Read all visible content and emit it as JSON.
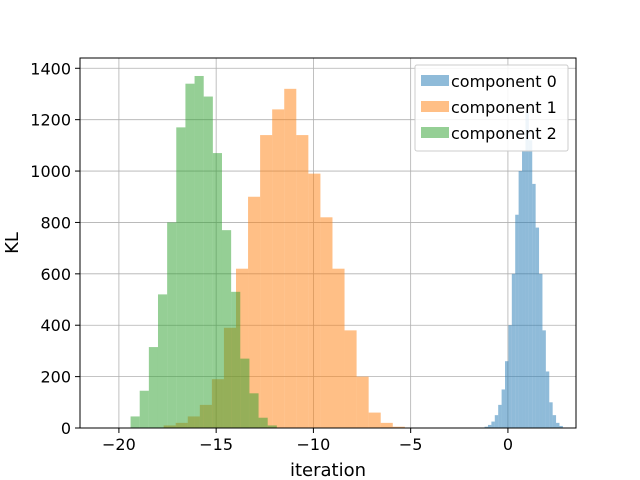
{
  "chart_data": {
    "type": "bar",
    "title": "",
    "xlabel": "iteration",
    "ylabel": "KL",
    "xlim": [
      -22,
      3.5
    ],
    "ylim": [
      0,
      1440
    ],
    "xticks": [
      -20,
      -15,
      -10,
      -5,
      0
    ],
    "xtick_labels": [
      "−20",
      "−15",
      "−10",
      "−5",
      "0"
    ],
    "yticks": [
      0,
      200,
      400,
      600,
      800,
      1000,
      1200,
      1400
    ],
    "ytick_labels": [
      "0",
      "200",
      "400",
      "600",
      "800",
      "1000",
      "1200",
      "1400"
    ],
    "grid": true,
    "legend_position": "top-right",
    "series": [
      {
        "name": "component 0",
        "color": "#1f77b4",
        "opacity": 0.5,
        "bin_start": -1.2,
        "bin_width": 0.175,
        "values": [
          5,
          12,
          25,
          50,
          90,
          150,
          260,
          400,
          600,
          830,
          1000,
          1080,
          1230,
          1120,
          950,
          780,
          600,
          380,
          220,
          100,
          50,
          20,
          8
        ]
      },
      {
        "name": "component 1",
        "color": "#ff7f0e",
        "opacity": 0.5,
        "bin_start": -17.7,
        "bin_width": 0.62,
        "values": [
          10,
          20,
          45,
          90,
          190,
          390,
          620,
          900,
          1140,
          1240,
          1320,
          1140,
          990,
          820,
          620,
          380,
          200,
          60,
          20,
          5
        ]
      },
      {
        "name": "component 2",
        "color": "#2ca02c",
        "opacity": 0.5,
        "bin_start": -19.4,
        "bin_width": 0.47,
        "values": [
          45,
          145,
          315,
          520,
          800,
          1170,
          1340,
          1370,
          1290,
          1070,
          770,
          530,
          270,
          135,
          40,
          10
        ]
      }
    ]
  }
}
